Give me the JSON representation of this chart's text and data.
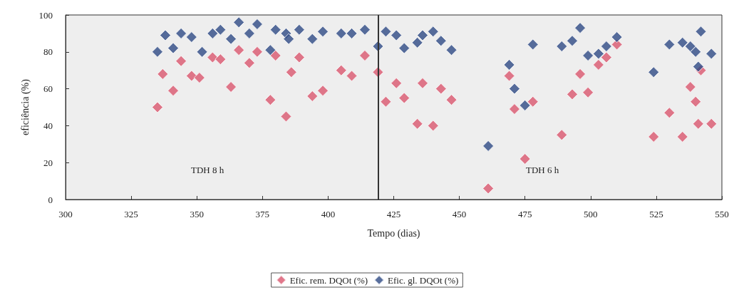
{
  "chart_data": {
    "type": "scatter",
    "xlabel": "Tempo (dias)",
    "ylabel": "eficiência (%)",
    "xlim": [
      300,
      550
    ],
    "xticks": [
      300,
      325,
      350,
      375,
      400,
      425,
      450,
      475,
      500,
      525,
      550
    ],
    "ylim": [
      0,
      100
    ],
    "yticks": [
      0,
      20,
      40,
      60,
      80,
      100
    ],
    "grid": false,
    "legend": "bottom",
    "marker": "diamond",
    "ref_lines": [
      {
        "axis": "x",
        "value": 419,
        "label": null,
        "color": "#333333"
      }
    ],
    "annotations": [
      "TDH 8 h",
      "TDH 6 h"
    ],
    "series": [
      {
        "name": "Efic. rem. DQOt (%)",
        "color": "#d9566e",
        "x": [
          335,
          337,
          341,
          344,
          348,
          351,
          356,
          359,
          363,
          366,
          370,
          373,
          378,
          380,
          384,
          386,
          389,
          394,
          398,
          405,
          409,
          414,
          419,
          422,
          426,
          429,
          434,
          436,
          440,
          443,
          447,
          461,
          469,
          471,
          475,
          478,
          489,
          493,
          496,
          499,
          503,
          506,
          510,
          524,
          530,
          535,
          538,
          539,
          540,
          541,
          542,
          546
        ],
        "values": [
          50,
          68,
          59,
          75,
          67,
          66,
          77,
          76,
          61,
          81,
          74,
          80,
          54,
          78,
          45,
          69,
          77,
          56,
          59,
          70,
          67,
          78,
          69,
          53,
          63,
          55,
          41,
          63,
          40,
          60,
          54,
          6,
          67,
          49,
          22,
          53,
          35,
          57,
          68,
          58,
          73,
          77,
          84,
          34,
          47,
          34,
          61,
          null,
          53,
          41,
          70,
          41
        ]
      },
      {
        "name": "Efic. gl. DQOt (%)",
        "color": "#2e4a84",
        "x": [
          335,
          338,
          341,
          344,
          348,
          352,
          356,
          359,
          363,
          366,
          370,
          373,
          378,
          380,
          384,
          385,
          389,
          394,
          398,
          405,
          409,
          414,
          419,
          422,
          426,
          429,
          434,
          436,
          440,
          443,
          447,
          461,
          469,
          471,
          475,
          478,
          489,
          493,
          496,
          499,
          503,
          506,
          510,
          524,
          530,
          535,
          538,
          540,
          541,
          542,
          546
        ],
        "values": [
          80,
          89,
          82,
          90,
          88,
          80,
          90,
          92,
          87,
          96,
          90,
          95,
          81,
          92,
          90,
          87,
          92,
          87,
          91,
          90,
          90,
          92,
          83,
          91,
          89,
          82,
          85,
          89,
          91,
          86,
          81,
          29,
          73,
          60,
          51,
          84,
          83,
          86,
          93,
          78,
          79,
          83,
          88,
          69,
          84,
          85,
          83,
          80,
          72,
          91,
          79
        ]
      }
    ]
  }
}
